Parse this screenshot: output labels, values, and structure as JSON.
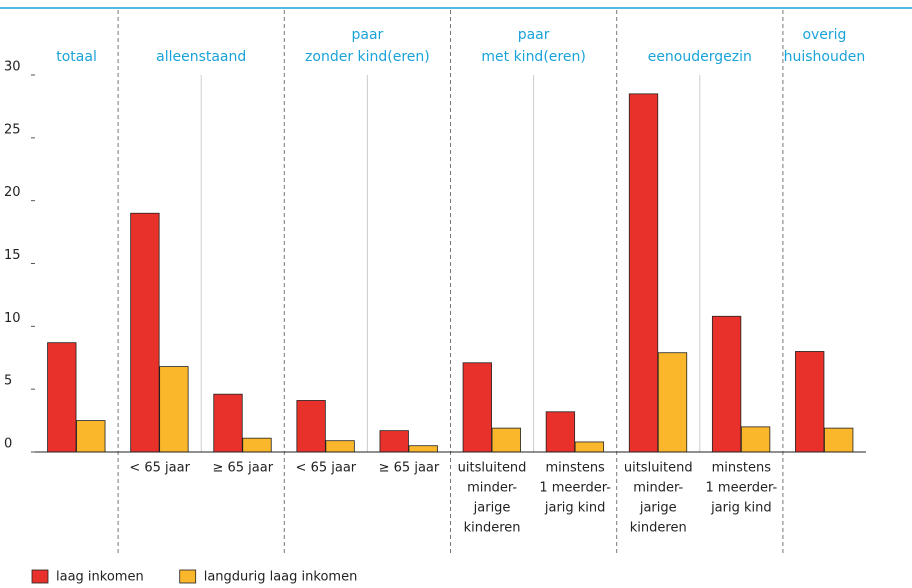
{
  "chart_data": {
    "type": "bar",
    "groups": [
      {
        "label": [
          "totaal"
        ],
        "size": 1
      },
      {
        "label": [
          "alleenstaand"
        ],
        "size": 2
      },
      {
        "label": [
          "paar",
          "zonder kind(eren)"
        ],
        "size": 2
      },
      {
        "label": [
          "paar",
          "met kind(eren)"
        ],
        "size": 2
      },
      {
        "label": [
          "eenoudergezin"
        ],
        "size": 2
      },
      {
        "label": [
          "overig",
          "huishouden"
        ],
        "size": 1
      }
    ],
    "categories": [
      null,
      [
        "< 65 jaar"
      ],
      [
        "≥ 65 jaar"
      ],
      [
        "< 65 jaar"
      ],
      [
        "≥ 65 jaar"
      ],
      [
        "uitsluitend",
        "minder-",
        "jarige",
        "kinderen"
      ],
      [
        "minstens",
        "1 meerder-",
        "jarig kind"
      ],
      [
        "uitsluitend",
        "minder-",
        "jarige",
        "kinderen"
      ],
      [
        "minstens",
        "1 meerder-",
        "jarig kind"
      ],
      null
    ],
    "series": [
      {
        "name": "laag inkomen",
        "color": "#e8312a",
        "values": [
          8.7,
          19.0,
          4.6,
          4.1,
          1.7,
          7.1,
          3.2,
          28.5,
          10.8,
          8.0
        ]
      },
      {
        "name": "langdurig laag inkomen",
        "color": "#fbb72b",
        "values": [
          2.5,
          6.8,
          1.1,
          0.9,
          0.5,
          1.9,
          0.8,
          7.9,
          2.0,
          1.9
        ]
      }
    ],
    "ylim": [
      0,
      30
    ],
    "yticks": [
      0,
      5,
      10,
      15,
      20,
      25,
      30
    ]
  }
}
